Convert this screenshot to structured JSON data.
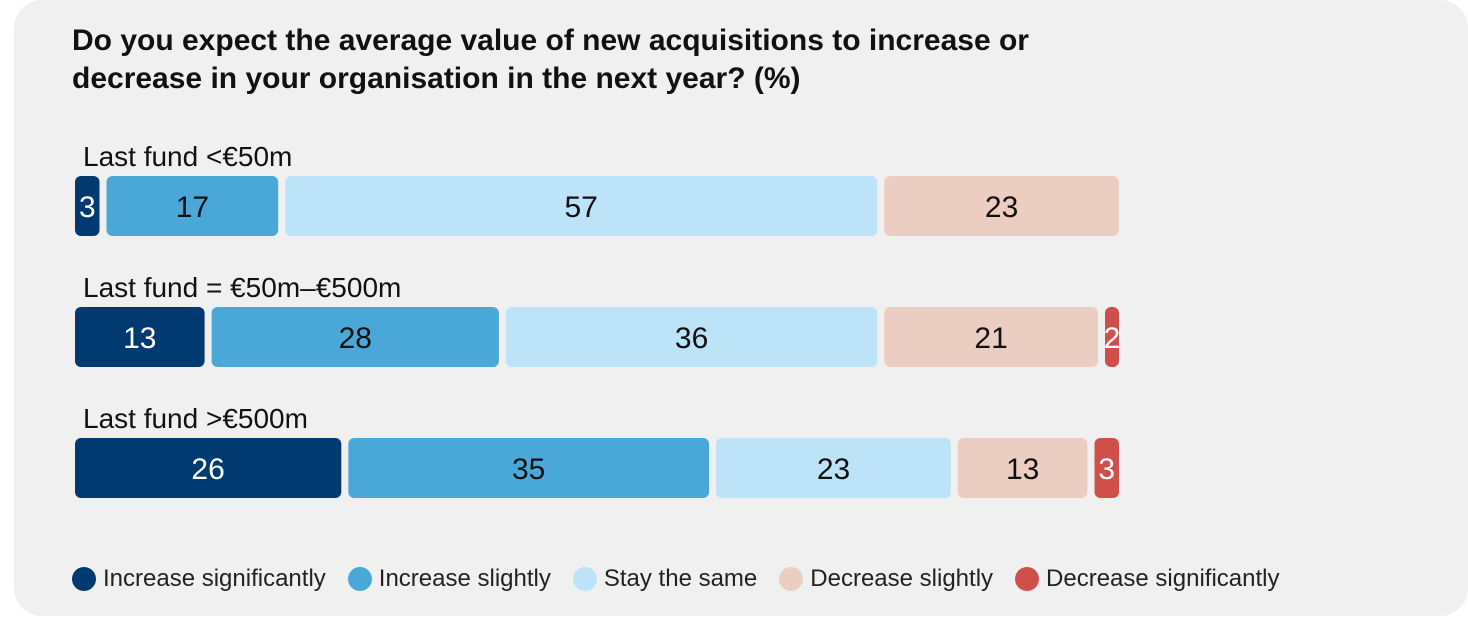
{
  "title_lines": [
    "Do you expect the average value of new acquisitions to increase or",
    "decrease in your organisation in the next year? (%)"
  ],
  "chart_data": {
    "type": "bar",
    "orientation": "horizontal",
    "stacked": true,
    "title": "Do you expect the average value of new acquisitions to increase or decrease in your organisation in the next year? (%)",
    "categories": [
      "Last fund <€50m",
      "Last fund = €50m–€500m",
      "Last fund >€500m"
    ],
    "series": [
      {
        "name": "Increase significantly",
        "color": "#003a70",
        "label_color": "#ffffff",
        "values": [
          3,
          13,
          26
        ]
      },
      {
        "name": "Increase slightly",
        "color": "#4aa8d8",
        "label_color": "#111111",
        "values": [
          17,
          28,
          35
        ]
      },
      {
        "name": "Stay the same",
        "color": "#bde3f8",
        "label_color": "#111111",
        "values": [
          57,
          36,
          23
        ]
      },
      {
        "name": "Decrease slightly",
        "color": "#ebcdc1",
        "label_color": "#111111",
        "values": [
          23,
          21,
          13
        ]
      },
      {
        "name": "Decrease significantly",
        "color": "#cf4f4b",
        "label_color": "#ffffff",
        "values": [
          0,
          2,
          3
        ]
      }
    ],
    "legend_position": "bottom",
    "grid": false
  }
}
